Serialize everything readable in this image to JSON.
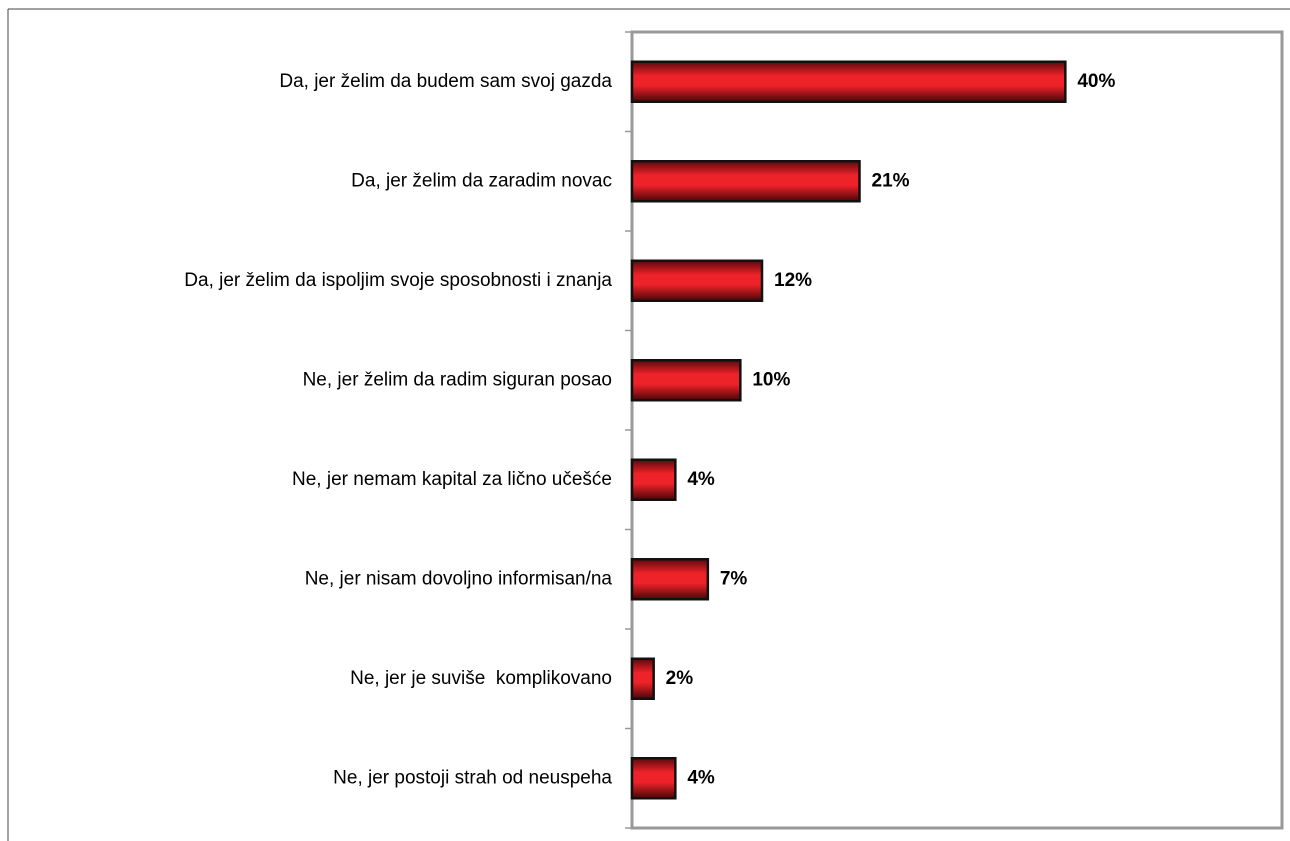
{
  "chart_data": {
    "type": "bar",
    "orientation": "horizontal",
    "categories": [
      "Da, jer želim da budem sam svoj gazda",
      "Da, jer želim da zaradim novac",
      "Da, jer želim da ispoljim svoje sposobnosti i znanja",
      "Ne, jer želim da radim siguran posao",
      "Ne, jer nemam kapital za lično učešće",
      "Ne, jer nisam dovoljno informisan/na",
      "Ne, jer je suviše  komplikovano",
      "Ne, jer postoji strah od neuspeha"
    ],
    "values": [
      40,
      21,
      12,
      10,
      4,
      7,
      2,
      4
    ],
    "value_labels": [
      "40%",
      "21%",
      "12%",
      "10%",
      "4%",
      "7%",
      "2%",
      "4%"
    ],
    "color": "#ee2229",
    "xlim": [
      0,
      60
    ]
  }
}
